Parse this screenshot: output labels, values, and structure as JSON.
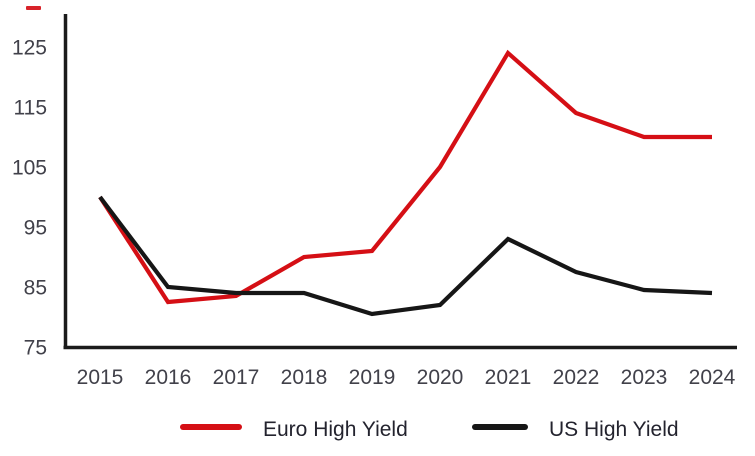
{
  "decoration": {
    "corner_dash_color": "#d8232a"
  },
  "chart_data": {
    "type": "line",
    "x": [
      "2015",
      "2016",
      "2017",
      "2018",
      "2019",
      "2020",
      "2021",
      "2022",
      "2023",
      "2024"
    ],
    "series": [
      {
        "name": "Euro High Yield",
        "color": "#d50f15",
        "values": [
          100,
          82.5,
          83.5,
          90,
          91,
          105,
          124,
          114,
          110,
          110
        ]
      },
      {
        "name": "US High Yield",
        "color": "#161616",
        "values": [
          100,
          85,
          84,
          84,
          80.5,
          82,
          93,
          87.5,
          84.5,
          84
        ]
      }
    ],
    "yticks": [
      75,
      85,
      95,
      105,
      115,
      125
    ],
    "ylim": [
      75,
      130.5
    ],
    "grid": false,
    "legend_position": "bottom",
    "axis_color": "#1b1b1b",
    "tick_label_color": "#41414a",
    "legend_text_color": "#23232e"
  }
}
